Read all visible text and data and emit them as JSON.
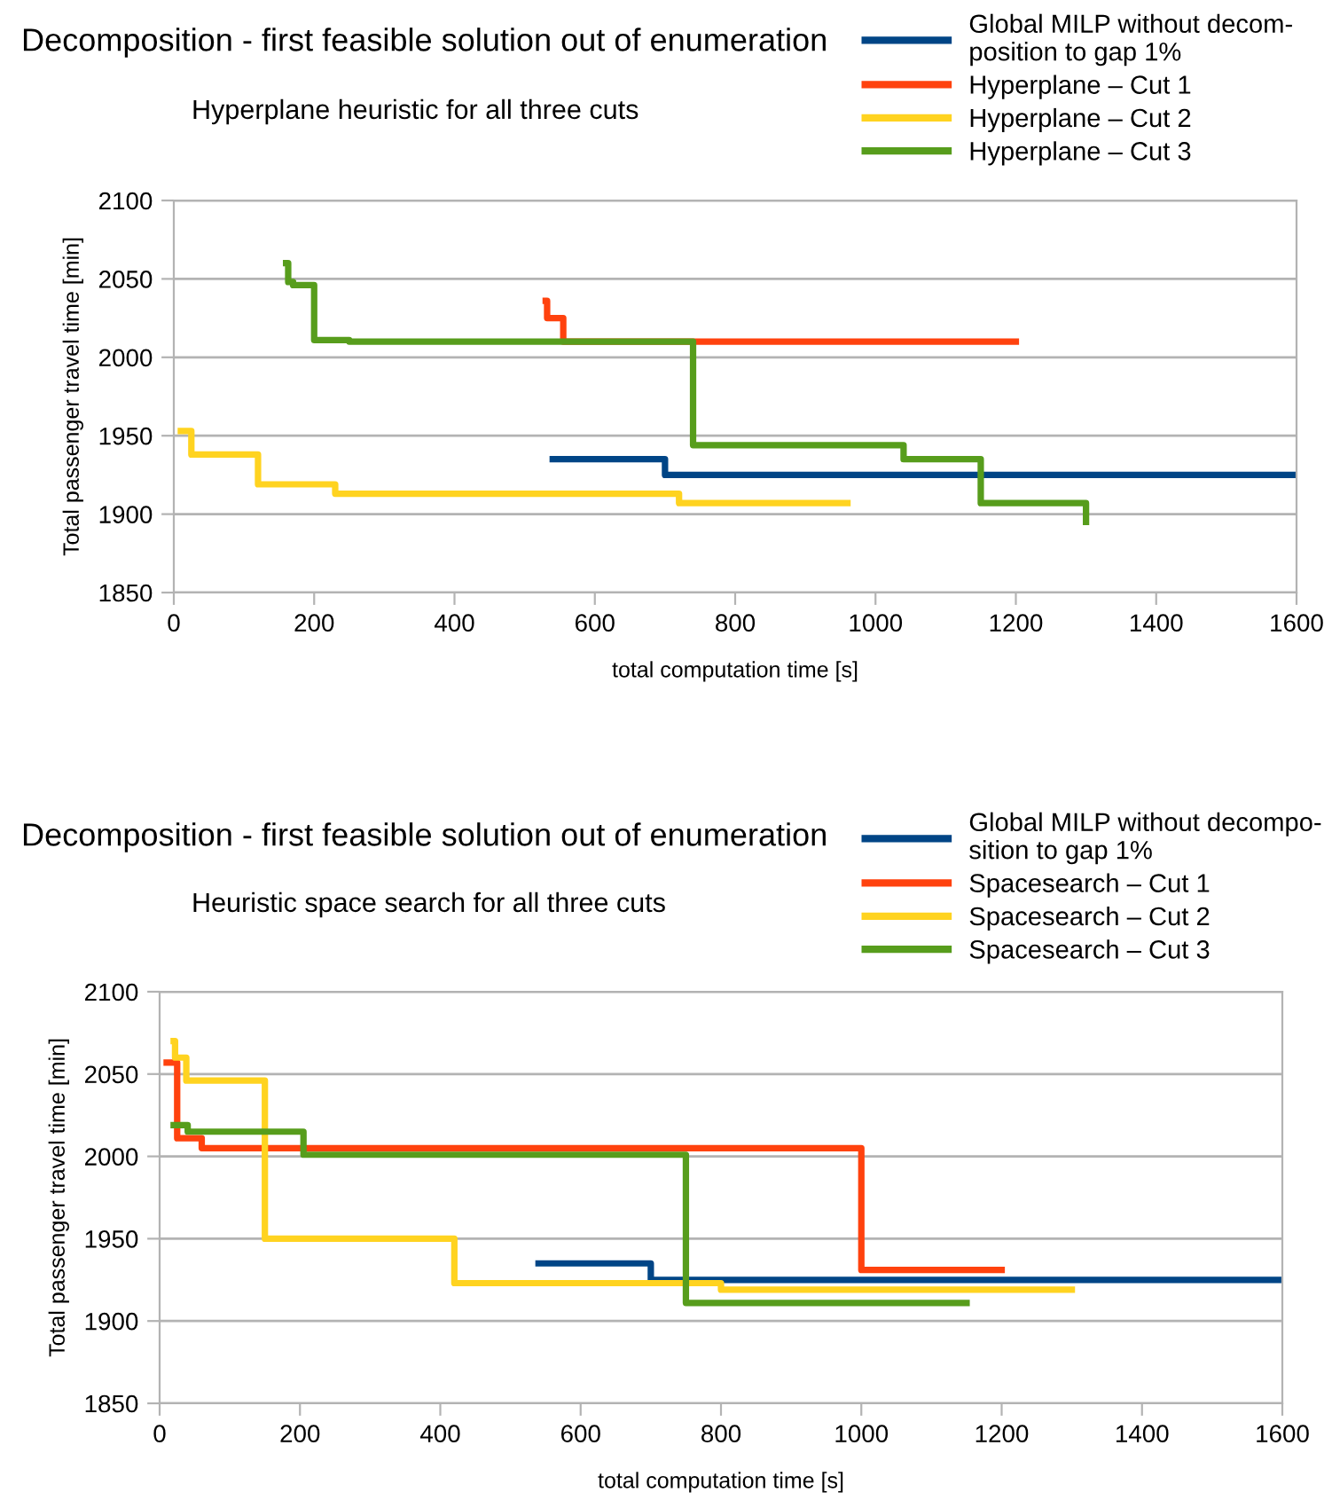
{
  "chart_data": [
    {
      "type": "step",
      "title": "Decomposition - first feasible solution out of enumeration",
      "subtitle": "Hyperplane heuristic for all three cuts",
      "xlabel": "total computation time [s]",
      "ylabel": "Total passenger travel time [min]",
      "xlim": [
        0,
        1600
      ],
      "xticks": [
        0,
        200,
        400,
        600,
        800,
        1000,
        1200,
        1400,
        1600
      ],
      "ylim": [
        1850,
        2100
      ],
      "yticks": [
        1850,
        1900,
        1950,
        2000,
        2050,
        2100
      ],
      "grid": "y",
      "legend": "top right",
      "series": [
        {
          "name": "Global MILP without decom-\nposition to gap 1%",
          "color": "#004586",
          "x": [
            540,
            700,
            1600
          ],
          "values": [
            1935,
            1925,
            1925
          ]
        },
        {
          "name": "Hyperplane – Cut 1",
          "color": "#ff420e",
          "x": [
            530,
            532,
            555,
            1200
          ],
          "values": [
            2036,
            2025,
            2010,
            2010
          ]
        },
        {
          "name": "Hyperplane – Cut 2",
          "color": "#ffd320",
          "x": [
            10,
            25,
            120,
            230,
            720,
            960
          ],
          "values": [
            1953,
            1938,
            1919,
            1913,
            1907,
            1907
          ]
        },
        {
          "name": "Hyperplane – Cut 3",
          "color": "#579d1c",
          "x": [
            160,
            163,
            170,
            200,
            250,
            740,
            1040,
            1150,
            1300
          ],
          "values": [
            2060,
            2048,
            2046,
            2011,
            2010,
            1944,
            1935,
            1907,
            1895
          ]
        }
      ]
    },
    {
      "type": "step",
      "title": "Decomposition - first feasible solution out of enumeration",
      "subtitle": "Heuristic space search for all three cuts",
      "xlabel": "total computation time [s]",
      "ylabel": "Total passenger travel time [min]",
      "xlim": [
        0,
        1600
      ],
      "xticks": [
        0,
        200,
        400,
        600,
        800,
        1000,
        1200,
        1400,
        1600
      ],
      "ylim": [
        1850,
        2100
      ],
      "yticks": [
        1850,
        1900,
        1950,
        2000,
        2050,
        2100
      ],
      "grid": "y",
      "legend": "top right",
      "series": [
        {
          "name": "Global MILP without decompo-\nsition to gap 1%",
          "color": "#004586",
          "x": [
            540,
            700,
            1600
          ],
          "values": [
            1935,
            1925,
            1925
          ]
        },
        {
          "name": "Spacesearch – Cut 1",
          "color": "#ff420e",
          "x": [
            10,
            25,
            60,
            1000,
            1200
          ],
          "values": [
            2057,
            2011,
            2005,
            1931,
            1931
          ]
        },
        {
          "name": "Spacesearch – Cut 2",
          "color": "#ffd320",
          "x": [
            20,
            22,
            38,
            150,
            420,
            800,
            1300
          ],
          "values": [
            2070,
            2060,
            2046,
            1950,
            1923,
            1919,
            1919
          ]
        },
        {
          "name": "Spacesearch – Cut 3",
          "color": "#579d1c",
          "x": [
            20,
            40,
            205,
            750,
            1150
          ],
          "values": [
            2019,
            2015,
            2001,
            1911,
            1911
          ]
        }
      ]
    }
  ]
}
